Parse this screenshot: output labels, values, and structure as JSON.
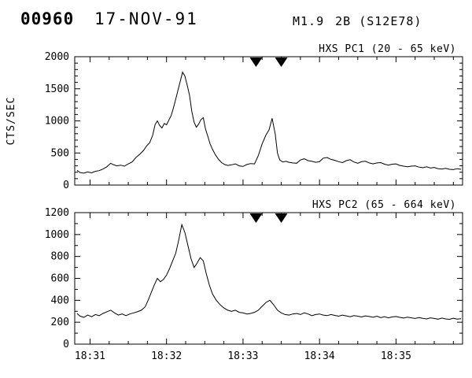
{
  "header": {
    "event_id": "00960",
    "date": "17-NOV-91",
    "xray_class": "M1.9",
    "optical_class": "2B (S12E78)"
  },
  "chart_data": [
    {
      "type": "line",
      "title": "HXS PC1 (20 - 65 keV)",
      "xlabel": "",
      "ylabel": "CTS/SEC",
      "ylim": [
        0,
        2000
      ],
      "yticks": [
        0,
        500,
        1000,
        1500,
        2000
      ],
      "y_minor_step": 100,
      "xlim": [
        30.8,
        35.87
      ],
      "xticks": [
        {
          "t": 31,
          "label": "18:31"
        },
        {
          "t": 32,
          "label": "18:32"
        },
        {
          "t": 33,
          "label": "18:33"
        },
        {
          "t": 34,
          "label": "18:34"
        },
        {
          "t": 35,
          "label": "18:35"
        }
      ],
      "x_minor_step": 0.25,
      "markers": [
        33.17,
        33.5
      ],
      "grid": false,
      "legend": "none",
      "series": [
        {
          "name": "PC1 counts",
          "points": [
            [
              30.83,
              230
            ],
            [
              30.87,
              195
            ],
            [
              30.92,
              185
            ],
            [
              30.97,
              205
            ],
            [
              31.02,
              190
            ],
            [
              31.07,
              215
            ],
            [
              31.12,
              225
            ],
            [
              31.17,
              250
            ],
            [
              31.22,
              285
            ],
            [
              31.27,
              340
            ],
            [
              31.3,
              320
            ],
            [
              31.35,
              300
            ],
            [
              31.4,
              310
            ],
            [
              31.45,
              295
            ],
            [
              31.5,
              330
            ],
            [
              31.55,
              360
            ],
            [
              31.6,
              430
            ],
            [
              31.65,
              480
            ],
            [
              31.7,
              540
            ],
            [
              31.74,
              610
            ],
            [
              31.78,
              660
            ],
            [
              31.82,
              780
            ],
            [
              31.85,
              940
            ],
            [
              31.88,
              1000
            ],
            [
              31.91,
              930
            ],
            [
              31.94,
              890
            ],
            [
              31.97,
              960
            ],
            [
              32,
              940
            ],
            [
              32.03,
              1010
            ],
            [
              32.06,
              1080
            ],
            [
              32.09,
              1200
            ],
            [
              32.12,
              1340
            ],
            [
              32.15,
              1480
            ],
            [
              32.18,
              1620
            ],
            [
              32.21,
              1760
            ],
            [
              32.24,
              1700
            ],
            [
              32.27,
              1560
            ],
            [
              32.3,
              1400
            ],
            [
              32.33,
              1150
            ],
            [
              32.36,
              980
            ],
            [
              32.39,
              900
            ],
            [
              32.42,
              950
            ],
            [
              32.45,
              1020
            ],
            [
              32.48,
              1050
            ],
            [
              32.51,
              870
            ],
            [
              32.54,
              760
            ],
            [
              32.57,
              640
            ],
            [
              32.6,
              560
            ],
            [
              32.64,
              470
            ],
            [
              32.68,
              400
            ],
            [
              32.72,
              350
            ],
            [
              32.76,
              320
            ],
            [
              32.8,
              305
            ],
            [
              32.85,
              315
            ],
            [
              32.9,
              330
            ],
            [
              32.95,
              300
            ],
            [
              33,
              290
            ],
            [
              33.05,
              320
            ],
            [
              33.1,
              335
            ],
            [
              33.15,
              330
            ],
            [
              33.2,
              460
            ],
            [
              33.25,
              640
            ],
            [
              33.3,
              780
            ],
            [
              33.34,
              860
            ],
            [
              33.38,
              1040
            ],
            [
              33.42,
              800
            ],
            [
              33.45,
              500
            ],
            [
              33.48,
              390
            ],
            [
              33.52,
              360
            ],
            [
              33.56,
              370
            ],
            [
              33.6,
              355
            ],
            [
              33.65,
              345
            ],
            [
              33.7,
              340
            ],
            [
              33.75,
              390
            ],
            [
              33.8,
              410
            ],
            [
              33.85,
              380
            ],
            [
              33.9,
              370
            ],
            [
              33.95,
              355
            ],
            [
              34,
              365
            ],
            [
              34.05,
              420
            ],
            [
              34.1,
              430
            ],
            [
              34.15,
              400
            ],
            [
              34.2,
              385
            ],
            [
              34.25,
              365
            ],
            [
              34.3,
              350
            ],
            [
              34.35,
              380
            ],
            [
              34.4,
              395
            ],
            [
              34.45,
              360
            ],
            [
              34.5,
              340
            ],
            [
              34.55,
              365
            ],
            [
              34.6,
              370
            ],
            [
              34.65,
              345
            ],
            [
              34.7,
              330
            ],
            [
              34.75,
              345
            ],
            [
              34.8,
              350
            ],
            [
              34.85,
              325
            ],
            [
              34.9,
              310
            ],
            [
              34.95,
              325
            ],
            [
              35,
              330
            ],
            [
              35.05,
              305
            ],
            [
              35.1,
              295
            ],
            [
              35.15,
              285
            ],
            [
              35.2,
              295
            ],
            [
              35.25,
              300
            ],
            [
              35.3,
              280
            ],
            [
              35.35,
              270
            ],
            [
              35.4,
              285
            ],
            [
              35.45,
              265
            ],
            [
              35.5,
              275
            ],
            [
              35.55,
              255
            ],
            [
              35.6,
              250
            ],
            [
              35.65,
              260
            ],
            [
              35.7,
              245
            ],
            [
              35.75,
              240
            ],
            [
              35.8,
              255
            ],
            [
              35.85,
              245
            ]
          ]
        }
      ]
    },
    {
      "type": "line",
      "title": "HXS PC2 (65 - 664 keV)",
      "xlabel": "",
      "ylabel": "",
      "ylim": [
        0,
        1200
      ],
      "yticks": [
        0,
        200,
        400,
        600,
        800,
        1000,
        1200
      ],
      "y_minor_step": 100,
      "xlim": [
        30.8,
        35.87
      ],
      "xticks": [
        {
          "t": 31,
          "label": "18:31"
        },
        {
          "t": 32,
          "label": "18:32"
        },
        {
          "t": 33,
          "label": "18:33"
        },
        {
          "t": 34,
          "label": "18:34"
        },
        {
          "t": 35,
          "label": "18:35"
        }
      ],
      "x_minor_step": 0.25,
      "markers": [
        33.17,
        33.5
      ],
      "grid": false,
      "legend": "none",
      "series": [
        {
          "name": "PC2 counts",
          "points": [
            [
              30.83,
              280
            ],
            [
              30.87,
              255
            ],
            [
              30.92,
              245
            ],
            [
              30.97,
              265
            ],
            [
              31.02,
              250
            ],
            [
              31.07,
              270
            ],
            [
              31.12,
              260
            ],
            [
              31.17,
              280
            ],
            [
              31.22,
              295
            ],
            [
              31.27,
              310
            ],
            [
              31.32,
              285
            ],
            [
              31.37,
              265
            ],
            [
              31.42,
              275
            ],
            [
              31.47,
              260
            ],
            [
              31.52,
              275
            ],
            [
              31.57,
              285
            ],
            [
              31.62,
              295
            ],
            [
              31.67,
              310
            ],
            [
              31.72,
              340
            ],
            [
              31.76,
              400
            ],
            [
              31.8,
              470
            ],
            [
              31.84,
              540
            ],
            [
              31.88,
              600
            ],
            [
              31.92,
              570
            ],
            [
              31.96,
              590
            ],
            [
              32,
              630
            ],
            [
              32.04,
              690
            ],
            [
              32.08,
              760
            ],
            [
              32.12,
              830
            ],
            [
              32.16,
              950
            ],
            [
              32.2,
              1090
            ],
            [
              32.24,
              1020
            ],
            [
              32.28,
              900
            ],
            [
              32.32,
              780
            ],
            [
              32.36,
              700
            ],
            [
              32.4,
              740
            ],
            [
              32.44,
              790
            ],
            [
              32.48,
              760
            ],
            [
              32.52,
              640
            ],
            [
              32.56,
              540
            ],
            [
              32.6,
              460
            ],
            [
              32.65,
              400
            ],
            [
              32.7,
              360
            ],
            [
              32.75,
              330
            ],
            [
              32.8,
              310
            ],
            [
              32.85,
              300
            ],
            [
              32.9,
              310
            ],
            [
              32.95,
              290
            ],
            [
              33,
              285
            ],
            [
              33.05,
              275
            ],
            [
              33.1,
              280
            ],
            [
              33.15,
              290
            ],
            [
              33.2,
              310
            ],
            [
              33.25,
              345
            ],
            [
              33.3,
              380
            ],
            [
              33.35,
              400
            ],
            [
              33.4,
              360
            ],
            [
              33.45,
              310
            ],
            [
              33.5,
              285
            ],
            [
              33.55,
              270
            ],
            [
              33.6,
              265
            ],
            [
              33.65,
              275
            ],
            [
              33.7,
              280
            ],
            [
              33.75,
              270
            ],
            [
              33.8,
              285
            ],
            [
              33.85,
              275
            ],
            [
              33.9,
              260
            ],
            [
              33.95,
              270
            ],
            [
              34,
              275
            ],
            [
              34.05,
              265
            ],
            [
              34.1,
              260
            ],
            [
              34.15,
              270
            ],
            [
              34.2,
              262
            ],
            [
              34.25,
              255
            ],
            [
              34.3,
              265
            ],
            [
              34.35,
              258
            ],
            [
              34.4,
              250
            ],
            [
              34.45,
              260
            ],
            [
              34.5,
              255
            ],
            [
              34.55,
              248
            ],
            [
              34.6,
              258
            ],
            [
              34.65,
              252
            ],
            [
              34.7,
              245
            ],
            [
              34.75,
              255
            ],
            [
              34.8,
              242
            ],
            [
              34.85,
              250
            ],
            [
              34.9,
              240
            ],
            [
              34.95,
              248
            ],
            [
              35,
              252
            ],
            [
              35.05,
              244
            ],
            [
              35.1,
              238
            ],
            [
              35.15,
              246
            ],
            [
              35.2,
              240
            ],
            [
              35.25,
              234
            ],
            [
              35.3,
              242
            ],
            [
              35.35,
              236
            ],
            [
              35.4,
              230
            ],
            [
              35.45,
              240
            ],
            [
              35.5,
              234
            ],
            [
              35.55,
              228
            ],
            [
              35.6,
              238
            ],
            [
              35.65,
              230
            ],
            [
              35.7,
              226
            ],
            [
              35.75,
              236
            ],
            [
              35.8,
              228
            ],
            [
              35.85,
              232
            ]
          ]
        }
      ]
    }
  ],
  "colors": {
    "line": "#000000",
    "background": "#ffffff",
    "marker_fill": "#000000"
  }
}
